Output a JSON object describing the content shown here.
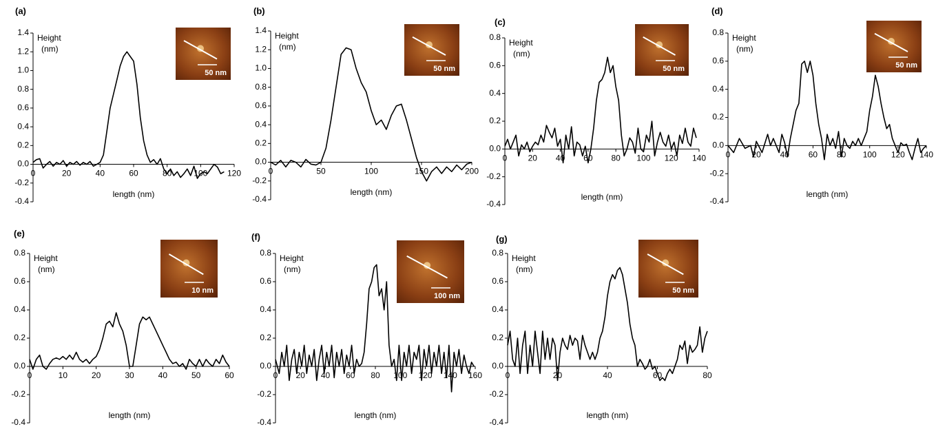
{
  "chart_data": [
    {
      "type": "line",
      "panel_label": "(a)",
      "ylabel": "Height",
      "ylabel_unit": "(nm)",
      "xlabel": "length (nm)",
      "inset_scale": "50 nm",
      "color": "#000000",
      "xlim": [
        0,
        120
      ],
      "xticks": [
        0,
        20,
        40,
        60,
        80,
        100,
        120
      ],
      "ylim": [
        -0.4,
        1.4
      ],
      "yticks": [
        -0.4,
        -0.2,
        {
          "value": 0,
          "label": "0.0"
        },
        0.2,
        0.4,
        0.6,
        0.8,
        {
          "value": 1,
          "label": "1.0"
        },
        1.2,
        1.4
      ],
      "x": [
        0,
        2,
        4,
        6,
        8,
        10,
        12,
        14,
        16,
        18,
        20,
        22,
        24,
        26,
        28,
        30,
        32,
        34,
        36,
        38,
        40,
        42,
        44,
        46,
        48,
        50,
        52,
        54,
        56,
        58,
        60,
        62,
        64,
        66,
        68,
        70,
        72,
        74,
        76,
        78,
        80,
        82,
        84,
        86,
        88,
        90,
        92,
        94,
        96,
        98,
        100,
        102,
        104,
        106,
        108,
        110,
        112,
        114
      ],
      "values": [
        0.02,
        0.05,
        0.06,
        -0.04,
        0.0,
        0.03,
        -0.02,
        0.02,
        0.0,
        0.04,
        -0.02,
        0.02,
        0.0,
        0.03,
        -0.01,
        0.02,
        0.0,
        0.03,
        -0.02,
        0.0,
        0.02,
        0.1,
        0.35,
        0.6,
        0.75,
        0.9,
        1.05,
        1.15,
        1.2,
        1.15,
        1.1,
        0.85,
        0.5,
        0.25,
        0.1,
        0.02,
        0.05,
        0.0,
        0.06,
        -0.05,
        -0.1,
        -0.05,
        -0.12,
        -0.08,
        -0.14,
        -0.1,
        -0.05,
        -0.12,
        -0.02,
        -0.15,
        -0.1,
        -0.08,
        -0.1,
        -0.05,
        0.0,
        -0.03,
        -0.1,
        -0.08
      ]
    },
    {
      "type": "line",
      "panel_label": "(b)",
      "ylabel": "Height",
      "ylabel_unit": "(nm)",
      "xlabel": "length (nm)",
      "inset_scale": "50 nm",
      "color": "#000000",
      "xlim": [
        0,
        200
      ],
      "xticks": [
        0,
        50,
        100,
        150,
        200
      ],
      "ylim": [
        -0.4,
        1.4
      ],
      "yticks": [
        -0.4,
        -0.2,
        {
          "value": 0,
          "label": "0.0"
        },
        0.2,
        0.4,
        0.6,
        0.8,
        {
          "value": 1,
          "label": "1.0"
        },
        1.2,
        1.4
      ],
      "x": [
        0,
        5,
        10,
        15,
        20,
        25,
        30,
        35,
        40,
        45,
        50,
        55,
        60,
        65,
        70,
        75,
        80,
        85,
        90,
        95,
        100,
        105,
        110,
        115,
        120,
        125,
        130,
        135,
        140,
        145,
        150,
        155,
        160,
        165,
        170,
        175,
        180,
        185,
        190,
        195,
        200
      ],
      "values": [
        0.0,
        -0.03,
        0.02,
        -0.05,
        0.02,
        0.0,
        -0.05,
        0.03,
        -0.02,
        -0.03,
        0.0,
        0.15,
        0.45,
        0.8,
        1.15,
        1.22,
        1.2,
        1.0,
        0.85,
        0.75,
        0.55,
        0.4,
        0.45,
        0.35,
        0.5,
        0.6,
        0.62,
        0.45,
        0.25,
        0.05,
        -0.1,
        -0.2,
        -0.1,
        -0.05,
        -0.12,
        -0.05,
        -0.1,
        -0.03,
        -0.08,
        -0.02,
        0.0
      ]
    },
    {
      "type": "line",
      "panel_label": "(c)",
      "ylabel": "Height",
      "ylabel_unit": "(nm)",
      "xlabel": "length (nm)",
      "inset_scale": "50 nm",
      "color": "#000000",
      "xlim": [
        0,
        140
      ],
      "xticks": [
        0,
        20,
        40,
        60,
        80,
        100,
        120,
        140
      ],
      "ylim": [
        -0.4,
        0.8
      ],
      "yticks": [
        -0.4,
        -0.2,
        {
          "value": 0,
          "label": "0.0"
        },
        0.2,
        0.4,
        0.6,
        0.8
      ],
      "x": [
        0,
        2,
        4,
        6,
        8,
        10,
        12,
        14,
        16,
        18,
        20,
        22,
        24,
        26,
        28,
        30,
        32,
        34,
        36,
        38,
        40,
        42,
        44,
        46,
        48,
        50,
        52,
        54,
        56,
        58,
        60,
        62,
        64,
        66,
        68,
        70,
        72,
        74,
        76,
        78,
        80,
        82,
        84,
        86,
        88,
        90,
        92,
        94,
        96,
        98,
        100,
        102,
        104,
        106,
        108,
        110,
        112,
        114,
        116,
        118,
        120,
        122,
        124,
        126,
        128,
        130,
        132,
        134,
        136,
        138
      ],
      "values": [
        0.02,
        0.07,
        0.0,
        0.05,
        0.1,
        -0.05,
        0.03,
        0.0,
        0.05,
        -0.02,
        0.02,
        0.05,
        0.03,
        0.1,
        0.05,
        0.17,
        0.12,
        0.08,
        0.15,
        0.02,
        0.07,
        -0.1,
        0.1,
        0.0,
        0.16,
        -0.05,
        0.05,
        0.03,
        -0.05,
        0.02,
        -0.1,
        0.0,
        0.15,
        0.35,
        0.48,
        0.5,
        0.55,
        0.66,
        0.55,
        0.6,
        0.45,
        0.35,
        0.1,
        -0.05,
        0.0,
        0.08,
        0.05,
        -0.03,
        0.15,
        0.0,
        -0.02,
        0.1,
        0.05,
        0.2,
        -0.05,
        0.05,
        0.12,
        0.05,
        0.02,
        0.1,
        0.0,
        0.05,
        -0.05,
        0.1,
        0.04,
        0.15,
        0.05,
        0.02,
        0.15,
        0.08
      ]
    },
    {
      "type": "line",
      "panel_label": "(d)",
      "ylabel": "Height",
      "ylabel_unit": "(nm)",
      "xlabel": "length (nm)",
      "inset_scale": "50 nm",
      "color": "#000000",
      "xlim": [
        0,
        140
      ],
      "xticks": [
        0,
        20,
        40,
        60,
        80,
        100,
        120,
        140
      ],
      "ylim": [
        -0.4,
        0.8
      ],
      "yticks": [
        -0.4,
        -0.2,
        {
          "value": 0,
          "label": "0.0"
        },
        0.2,
        0.4,
        0.6,
        0.8
      ],
      "x": [
        0,
        4,
        8,
        12,
        16,
        18,
        20,
        24,
        28,
        30,
        32,
        36,
        38,
        40,
        42,
        44,
        46,
        48,
        50,
        52,
        54,
        56,
        58,
        60,
        62,
        64,
        66,
        68,
        70,
        72,
        74,
        76,
        78,
        80,
        82,
        84,
        86,
        88,
        90,
        92,
        94,
        96,
        98,
        100,
        102,
        104,
        106,
        108,
        110,
        112,
        114,
        116,
        118,
        120,
        122,
        124,
        126,
        128,
        130,
        132,
        134,
        136,
        138,
        140
      ],
      "values": [
        0.0,
        -0.05,
        0.05,
        -0.02,
        0.0,
        -0.08,
        0.03,
        -0.05,
        0.08,
        0.0,
        0.05,
        -0.05,
        0.08,
        0.02,
        -0.08,
        0.05,
        0.15,
        0.25,
        0.3,
        0.58,
        0.6,
        0.52,
        0.6,
        0.5,
        0.3,
        0.15,
        0.05,
        -0.1,
        0.08,
        0.0,
        0.05,
        -0.02,
        0.1,
        -0.08,
        0.05,
        0.0,
        -0.02,
        0.03,
        0.0,
        0.05,
        0.0,
        0.05,
        0.1,
        0.25,
        0.35,
        0.5,
        0.42,
        0.3,
        0.2,
        0.12,
        0.15,
        0.05,
        0.0,
        -0.05,
        0.02,
        0.0,
        0.01,
        -0.05,
        -0.1,
        -0.02,
        0.05,
        -0.05,
        -0.02,
        0.0
      ]
    },
    {
      "type": "line",
      "panel_label": "(e)",
      "ylabel": "Height",
      "ylabel_unit": "(nm)",
      "xlabel": "length (nm)",
      "inset_scale": "10 nm",
      "color": "#000000",
      "xlim": [
        0,
        60
      ],
      "xticks": [
        0,
        10,
        20,
        30,
        40,
        50,
        60
      ],
      "ylim": [
        -0.4,
        0.8
      ],
      "yticks": [
        -0.4,
        -0.2,
        {
          "value": 0,
          "label": "0.0"
        },
        0.2,
        0.4,
        0.6,
        0.8
      ],
      "x": [
        0,
        1,
        2,
        3,
        4,
        5,
        6,
        7,
        8,
        9,
        10,
        11,
        12,
        13,
        14,
        15,
        16,
        17,
        18,
        19,
        20,
        21,
        22,
        23,
        24,
        25,
        26,
        27,
        28,
        29,
        30,
        31,
        32,
        33,
        34,
        35,
        36,
        37,
        38,
        39,
        40,
        41,
        42,
        43,
        44,
        45,
        46,
        47,
        48,
        49,
        50,
        51,
        52,
        53,
        54,
        55,
        56,
        57,
        58,
        59,
        60
      ],
      "values": [
        0.05,
        -0.02,
        0.05,
        0.08,
        0.0,
        -0.02,
        0.02,
        0.05,
        0.06,
        0.05,
        0.07,
        0.05,
        0.08,
        0.05,
        0.1,
        0.05,
        0.03,
        0.05,
        0.02,
        0.05,
        0.07,
        0.12,
        0.2,
        0.3,
        0.32,
        0.28,
        0.38,
        0.3,
        0.25,
        0.15,
        0.0,
        0.0,
        0.15,
        0.3,
        0.35,
        0.33,
        0.35,
        0.3,
        0.25,
        0.2,
        0.15,
        0.1,
        0.05,
        0.02,
        0.03,
        0.0,
        0.02,
        -0.02,
        0.05,
        0.02,
        0.0,
        0.05,
        0.0,
        0.05,
        0.02,
        0.0,
        0.05,
        0.02,
        0.08,
        0.03,
        0.0
      ]
    },
    {
      "type": "line",
      "panel_label": "(f)",
      "ylabel": "Height",
      "ylabel_unit": "(nm)",
      "xlabel": "length (nm)",
      "inset_scale": "100 nm",
      "color": "#000000",
      "xlim": [
        0,
        160
      ],
      "xticks": [
        0,
        20,
        40,
        60,
        80,
        100,
        120,
        140,
        160
      ],
      "ylim": [
        -0.4,
        0.8
      ],
      "yticks": [
        -0.4,
        -0.2,
        {
          "value": 0,
          "label": "0.0"
        },
        0.2,
        0.4,
        0.6,
        0.8
      ],
      "x": [
        0,
        3,
        5,
        7,
        9,
        11,
        13,
        15,
        17,
        19,
        21,
        23,
        25,
        27,
        29,
        31,
        33,
        35,
        37,
        39,
        41,
        43,
        45,
        47,
        49,
        51,
        53,
        55,
        57,
        59,
        61,
        63,
        65,
        67,
        69,
        71,
        73,
        75,
        77,
        79,
        81,
        83,
        85,
        87,
        89,
        91,
        93,
        95,
        97,
        99,
        101,
        103,
        105,
        107,
        109,
        111,
        113,
        115,
        117,
        119,
        121,
        123,
        125,
        127,
        129,
        131,
        133,
        135,
        137,
        139,
        141,
        143,
        145,
        147,
        149,
        151,
        153,
        155,
        157,
        159
      ],
      "values": [
        0.05,
        -0.05,
        0.1,
        0.0,
        0.15,
        -0.1,
        0.05,
        0.12,
        -0.05,
        0.1,
        0.0,
        0.15,
        -0.05,
        0.08,
        0.0,
        0.12,
        -0.1,
        0.05,
        0.15,
        -0.05,
        0.1,
        0.0,
        0.15,
        -0.08,
        0.1,
        0.0,
        0.12,
        -0.05,
        0.08,
        0.0,
        0.15,
        -0.05,
        0.05,
        0.0,
        0.02,
        0.1,
        0.3,
        0.55,
        0.6,
        0.7,
        0.72,
        0.5,
        0.55,
        0.4,
        0.6,
        0.15,
        0.0,
        0.05,
        -0.1,
        0.15,
        -0.1,
        0.1,
        0.0,
        0.15,
        -0.05,
        0.1,
        0.05,
        0.15,
        -0.1,
        0.12,
        0.0,
        0.15,
        -0.05,
        0.1,
        0.0,
        0.15,
        -0.05,
        0.1,
        -0.08,
        0.15,
        -0.18,
        0.1,
        0.0,
        0.12,
        -0.05,
        0.08,
        0.0,
        -0.05,
        0.03,
        0.0
      ]
    },
    {
      "type": "line",
      "panel_label": "(g)",
      "ylabel": "Height",
      "ylabel_unit": "(nm)",
      "xlabel": "length (nm)",
      "inset_scale": "50 nm",
      "color": "#000000",
      "xlim": [
        0,
        80
      ],
      "xticks": [
        0,
        20,
        40,
        60,
        80
      ],
      "ylim": [
        -0.4,
        0.8
      ],
      "yticks": [
        -0.4,
        -0.2,
        {
          "value": 0,
          "label": "0.0"
        },
        0.2,
        0.4,
        0.6,
        0.8
      ],
      "x": [
        0,
        1,
        2,
        3,
        4,
        5,
        6,
        7,
        8,
        9,
        10,
        11,
        12,
        13,
        14,
        15,
        16,
        17,
        18,
        19,
        20,
        21,
        22,
        23,
        24,
        25,
        26,
        27,
        28,
        29,
        30,
        31,
        32,
        33,
        34,
        35,
        36,
        37,
        38,
        39,
        40,
        41,
        42,
        43,
        44,
        45,
        46,
        47,
        48,
        49,
        50,
        51,
        52,
        53,
        54,
        55,
        56,
        57,
        58,
        59,
        60,
        61,
        62,
        63,
        64,
        65,
        66,
        67,
        68,
        69,
        70,
        71,
        72,
        73,
        74,
        75,
        76,
        77,
        78,
        79,
        80
      ],
      "values": [
        0.15,
        0.25,
        0.05,
        0.0,
        0.2,
        -0.05,
        0.15,
        0.25,
        -0.05,
        0.15,
        0.0,
        0.25,
        0.1,
        -0.05,
        0.25,
        0.05,
        0.2,
        0.05,
        0.2,
        0.15,
        -0.1,
        0.1,
        0.2,
        0.15,
        0.12,
        0.22,
        0.15,
        0.2,
        0.18,
        0.05,
        0.22,
        0.15,
        0.1,
        0.05,
        0.1,
        0.05,
        0.1,
        0.2,
        0.25,
        0.35,
        0.5,
        0.6,
        0.65,
        0.62,
        0.68,
        0.7,
        0.65,
        0.55,
        0.45,
        0.3,
        0.2,
        0.15,
        0.0,
        0.05,
        0.02,
        -0.02,
        0.0,
        0.05,
        -0.02,
        0.0,
        -0.05,
        -0.1,
        -0.08,
        -0.1,
        -0.05,
        -0.02,
        -0.05,
        0.0,
        0.05,
        0.15,
        0.12,
        0.18,
        0.02,
        0.15,
        0.1,
        0.12,
        0.15,
        0.28,
        0.1,
        0.2,
        0.25
      ]
    }
  ]
}
